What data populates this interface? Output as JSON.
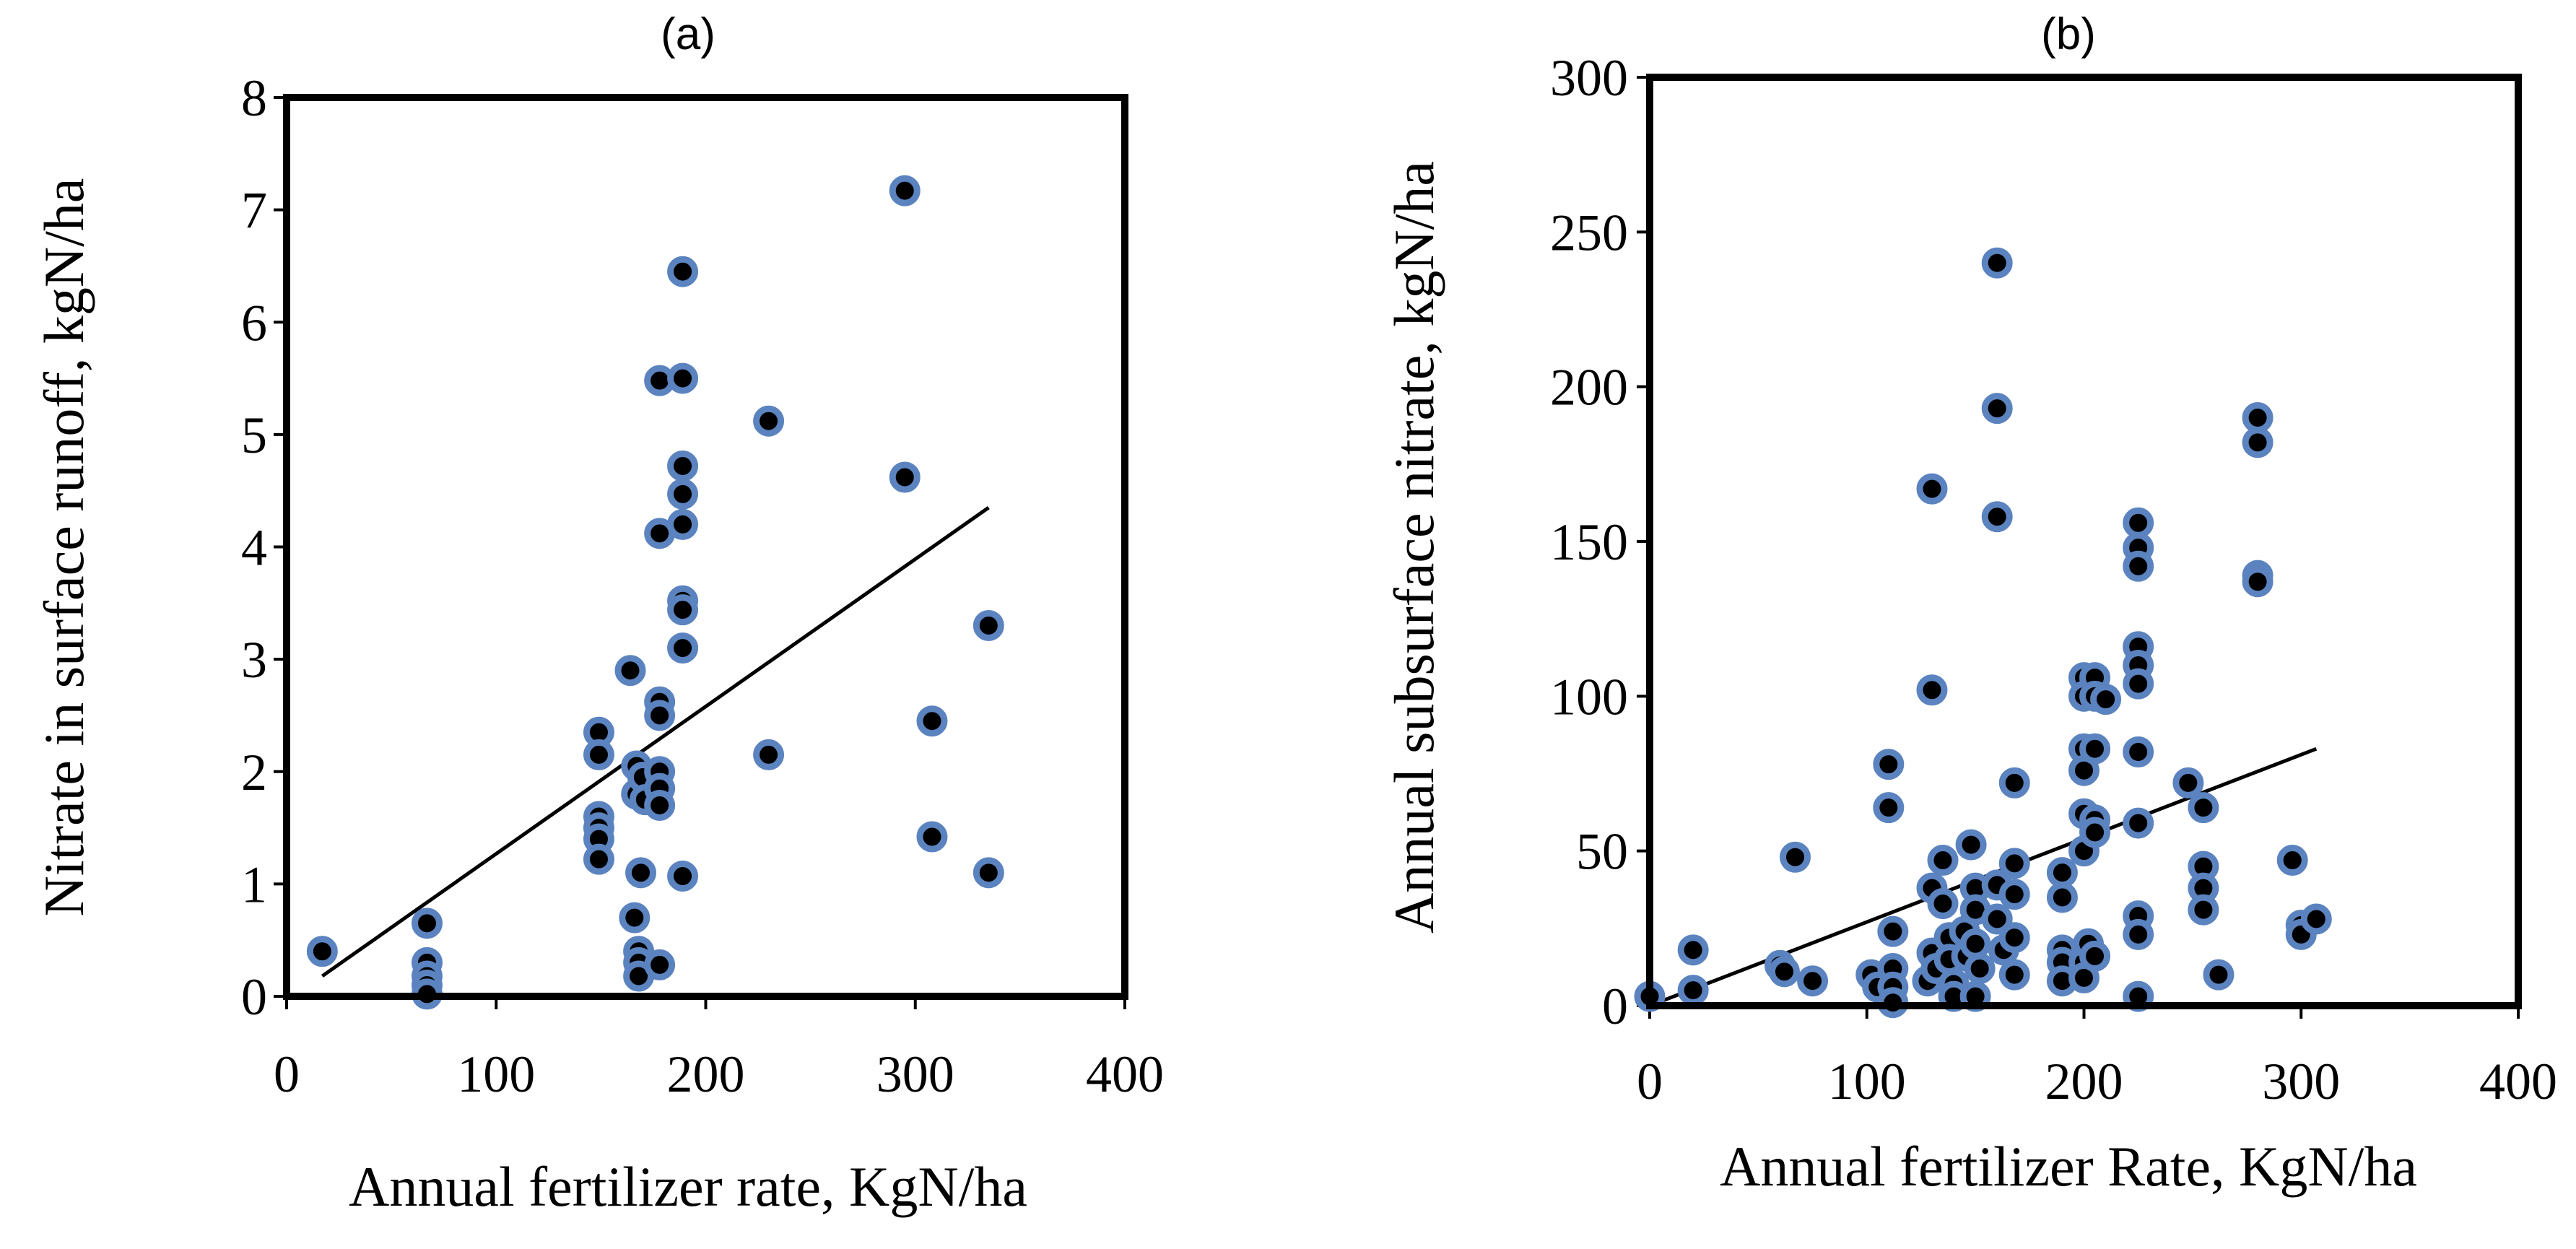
{
  "chart_data": [
    {
      "type": "scatter",
      "panel": "(a)",
      "title": "(a)",
      "xlabel": "Annual fertilizer rate, KgN/ha",
      "ylabel": "Nitrate in surface runoff, kgN/ha",
      "xlim": [
        0,
        400
      ],
      "ylim": [
        0,
        8
      ],
      "xticks": [
        0,
        100,
        200,
        300,
        400
      ],
      "yticks": [
        0,
        1,
        2,
        3,
        4,
        5,
        6,
        7,
        8
      ],
      "points": [
        [
          17,
          0.4
        ],
        [
          67,
          0.65
        ],
        [
          67,
          0.3
        ],
        [
          67,
          0.18
        ],
        [
          67,
          0.1
        ],
        [
          67,
          0.02
        ],
        [
          149,
          2.35
        ],
        [
          149,
          2.15
        ],
        [
          149,
          1.6
        ],
        [
          149,
          1.5
        ],
        [
          149,
          1.4
        ],
        [
          149,
          1.22
        ],
        [
          164,
          2.9
        ],
        [
          166,
          0.7
        ],
        [
          167,
          2.05
        ],
        [
          167,
          1.8
        ],
        [
          168,
          0.4
        ],
        [
          168,
          0.3
        ],
        [
          168,
          0.18
        ],
        [
          169,
          1.1
        ],
        [
          170,
          1.95
        ],
        [
          171,
          1.75
        ],
        [
          178,
          5.48
        ],
        [
          178,
          4.12
        ],
        [
          178,
          2.62
        ],
        [
          178,
          2.5
        ],
        [
          178,
          2.0
        ],
        [
          178,
          1.85
        ],
        [
          178,
          1.7
        ],
        [
          178,
          0.28
        ],
        [
          189,
          6.45
        ],
        [
          189,
          5.5
        ],
        [
          189,
          4.72
        ],
        [
          189,
          4.47
        ],
        [
          189,
          4.2
        ],
        [
          189,
          3.52
        ],
        [
          189,
          3.44
        ],
        [
          189,
          3.1
        ],
        [
          189,
          1.07
        ],
        [
          230,
          5.12
        ],
        [
          230,
          2.15
        ],
        [
          295,
          7.17
        ],
        [
          295,
          4.62
        ],
        [
          308,
          2.45
        ],
        [
          308,
          1.42
        ],
        [
          335,
          3.3
        ],
        [
          335,
          1.1
        ]
      ],
      "trendline": {
        "x": [
          17,
          335
        ],
        "y": [
          0.18,
          4.35
        ]
      }
    },
    {
      "type": "scatter",
      "panel": "(b)",
      "title": "(b)",
      "xlabel": "Annual fertilizer Rate, KgN/ha",
      "ylabel": "Annual subsurface nitrate, kgN/ha",
      "xlim": [
        0,
        400
      ],
      "ylim": [
        0,
        300
      ],
      "xticks": [
        0,
        100,
        200,
        300,
        400
      ],
      "yticks": [
        0,
        50,
        100,
        150,
        200,
        250,
        300
      ],
      "points": [
        [
          0,
          3
        ],
        [
          20,
          18
        ],
        [
          20,
          5
        ],
        [
          60,
          13
        ],
        [
          62,
          11
        ],
        [
          67,
          48
        ],
        [
          75,
          8
        ],
        [
          102,
          10
        ],
        [
          105,
          6
        ],
        [
          110,
          78
        ],
        [
          110,
          64
        ],
        [
          112,
          24
        ],
        [
          112,
          12
        ],
        [
          112,
          6
        ],
        [
          112,
          1
        ],
        [
          128,
          8
        ],
        [
          130,
          167
        ],
        [
          130,
          102
        ],
        [
          130,
          38
        ],
        [
          130,
          17
        ],
        [
          132,
          12
        ],
        [
          135,
          47
        ],
        [
          135,
          33
        ],
        [
          138,
          22
        ],
        [
          138,
          15
        ],
        [
          140,
          7
        ],
        [
          140,
          3
        ],
        [
          145,
          24
        ],
        [
          146,
          16
        ],
        [
          148,
          52
        ],
        [
          150,
          38
        ],
        [
          150,
          31
        ],
        [
          150,
          20
        ],
        [
          150,
          3
        ],
        [
          152,
          12
        ],
        [
          160,
          240
        ],
        [
          160,
          193
        ],
        [
          160,
          158
        ],
        [
          160,
          39
        ],
        [
          160,
          28
        ],
        [
          163,
          18
        ],
        [
          168,
          72
        ],
        [
          168,
          46
        ],
        [
          168,
          36
        ],
        [
          168,
          22
        ],
        [
          168,
          10
        ],
        [
          190,
          43
        ],
        [
          190,
          35
        ],
        [
          190,
          18
        ],
        [
          190,
          14
        ],
        [
          190,
          8
        ],
        [
          200,
          106
        ],
        [
          200,
          100
        ],
        [
          200,
          83
        ],
        [
          200,
          76
        ],
        [
          200,
          62
        ],
        [
          200,
          50
        ],
        [
          200,
          14
        ],
        [
          200,
          9
        ],
        [
          202,
          20
        ],
        [
          205,
          106
        ],
        [
          205,
          100
        ],
        [
          205,
          83
        ],
        [
          205,
          60
        ],
        [
          205,
          56
        ],
        [
          205,
          16
        ],
        [
          210,
          99
        ],
        [
          225,
          156
        ],
        [
          225,
          148
        ],
        [
          225,
          142
        ],
        [
          225,
          116
        ],
        [
          225,
          110
        ],
        [
          225,
          104
        ],
        [
          225,
          82
        ],
        [
          225,
          59
        ],
        [
          225,
          29
        ],
        [
          225,
          23
        ],
        [
          225,
          3
        ],
        [
          248,
          72
        ],
        [
          255,
          64
        ],
        [
          255,
          45
        ],
        [
          255,
          38
        ],
        [
          255,
          31
        ],
        [
          262,
          10
        ],
        [
          280,
          190
        ],
        [
          280,
          182
        ],
        [
          280,
          139
        ],
        [
          280,
          137
        ],
        [
          296,
          47
        ],
        [
          300,
          26
        ],
        [
          300,
          23
        ],
        [
          307,
          28
        ]
      ],
      "trendline": {
        "x": [
          0,
          307
        ],
        "y": [
          0,
          83
        ]
      }
    }
  ]
}
